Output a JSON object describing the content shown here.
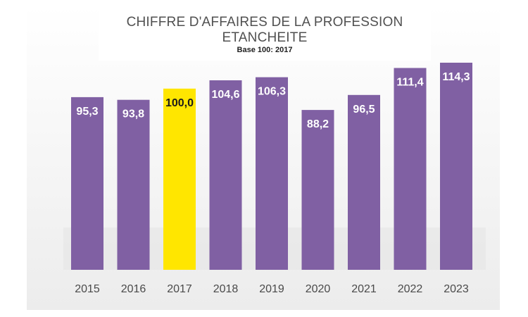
{
  "chart_data": {
    "type": "bar",
    "title": "CHIFFRE D'AFFAIRES DE LA PROFESSION ETANCHEITE",
    "subtitle": "Base 100: 2017",
    "categories": [
      "2015",
      "2016",
      "2017",
      "2018",
      "2019",
      "2020",
      "2021",
      "2022",
      "2023"
    ],
    "values": [
      95.3,
      93.8,
      100.0,
      104.6,
      106.3,
      88.2,
      96.5,
      111.4,
      114.3
    ],
    "value_labels": [
      "95,3",
      "93,8",
      "100,0",
      "104,6",
      "106,3",
      "88,2",
      "96,5",
      "111,4",
      "114,3"
    ],
    "highlight_category": "2017",
    "ylim": [
      0,
      114.3
    ],
    "grid": false,
    "legend": "none",
    "colors": {
      "bar": "#8060a3",
      "highlight": "#ffe600",
      "label_on_bar": "#ffffff",
      "label_on_highlight": "#1a1a1a"
    }
  }
}
